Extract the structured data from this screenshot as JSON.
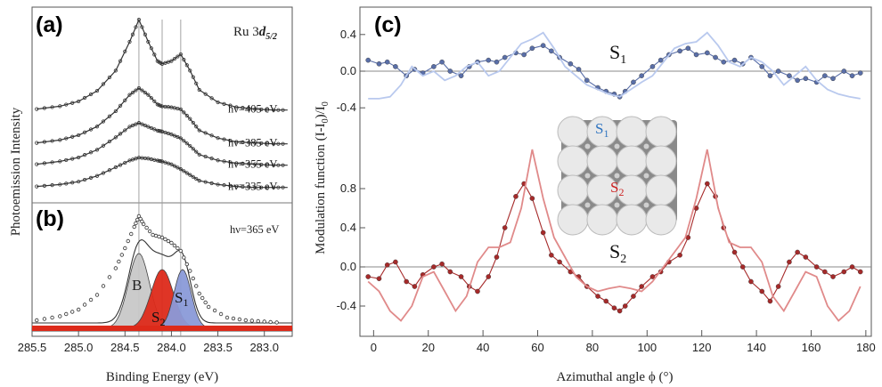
{
  "figure": {
    "panel_labels": [
      "(a)",
      "(b)",
      "(c)"
    ],
    "ab_ylabel": "Photoemission Intensity",
    "ab_xlabel": "Binding Energy (eV)",
    "c_ylabel": "Modulation function (I-I",
    "c_ylabel_sub": "0",
    "c_ylabel_tail": ")/I",
    "c_ylabel_sub2": "0",
    "c_xlabel": "Azimuthal angle ϕ (°)",
    "a_title_main": "Ru 3",
    "a_title_d": "d",
    "a_title_sub": "5/2",
    "b_title": "hν=365 eV",
    "b_peaks": {
      "B": "B",
      "S2": "S",
      "S2_sub": "2",
      "S1": "S",
      "S1_sub": "1"
    },
    "c_series_labels": {
      "S1": "S",
      "S1_sub": "1",
      "S2": "S",
      "S2_sub": "2"
    },
    "c_model_labels": {
      "S1": "S",
      "S1_sub": "1",
      "S2": "S",
      "S2_sub": "2"
    }
  },
  "colors": {
    "s1_points": "#5a6fa8",
    "s1_line": "#b9c9ee",
    "s2_points": "#a62a2a",
    "s2_line": "#e08a8a",
    "B_fill": "#c8c8c8",
    "S2_fill": "#dd2a1a",
    "S1_fill": "#8a9ad8",
    "model_S1_text": "#2f74c0",
    "model_S2_text": "#cc2222"
  },
  "chart_data": [
    {
      "type": "line",
      "panel": "(a)",
      "title": "Ru 3d5/2",
      "xlabel": "Binding Energy (eV)",
      "ylabel": "Photoemission Intensity",
      "xlim": [
        285.5,
        282.7
      ],
      "x_reversed": true,
      "xticks": [
        285.5,
        285.0,
        284.5,
        284.0,
        283.5,
        283.0
      ],
      "reference_lines_eV": [
        284.35,
        284.1,
        283.9
      ],
      "series": [
        {
          "name": "hν=405 eV",
          "x": [
            285.45,
            285.2,
            285.0,
            284.8,
            284.6,
            284.45,
            284.35,
            284.25,
            284.15,
            284.1,
            284.0,
            283.9,
            283.8,
            283.7,
            283.5,
            283.3,
            283.1,
            282.9,
            282.75
          ],
          "y": [
            0.05,
            0.08,
            0.13,
            0.24,
            0.45,
            0.75,
            0.98,
            0.75,
            0.55,
            0.52,
            0.55,
            0.62,
            0.45,
            0.25,
            0.12,
            0.07,
            0.05,
            0.04,
            0.04
          ]
        },
        {
          "name": "hν=385 eV",
          "x": [
            285.45,
            285.2,
            285.0,
            284.8,
            284.6,
            284.45,
            284.35,
            284.25,
            284.15,
            284.1,
            284.0,
            283.9,
            283.8,
            283.7,
            283.5,
            283.3,
            283.1,
            282.9,
            282.75
          ],
          "y": [
            0.05,
            0.08,
            0.13,
            0.22,
            0.38,
            0.55,
            0.62,
            0.55,
            0.45,
            0.43,
            0.42,
            0.4,
            0.3,
            0.18,
            0.1,
            0.06,
            0.05,
            0.04,
            0.04
          ]
        },
        {
          "name": "hν=355 eV",
          "x": [
            285.45,
            285.2,
            285.0,
            284.8,
            284.6,
            284.45,
            284.35,
            284.25,
            284.15,
            284.1,
            284.0,
            283.9,
            283.8,
            283.7,
            283.5,
            283.3,
            283.1,
            282.9,
            282.75
          ],
          "y": [
            0.05,
            0.08,
            0.12,
            0.2,
            0.33,
            0.44,
            0.48,
            0.44,
            0.4,
            0.39,
            0.36,
            0.32,
            0.24,
            0.15,
            0.09,
            0.06,
            0.05,
            0.04,
            0.04
          ]
        },
        {
          "name": "hν=335 eV",
          "x": [
            285.45,
            285.2,
            285.0,
            284.8,
            284.6,
            284.45,
            284.35,
            284.25,
            284.15,
            284.1,
            284.0,
            283.9,
            283.8,
            283.7,
            283.5,
            283.3,
            283.1,
            282.9,
            282.75
          ],
          "y": [
            0.05,
            0.07,
            0.1,
            0.16,
            0.25,
            0.32,
            0.35,
            0.34,
            0.32,
            0.31,
            0.28,
            0.23,
            0.17,
            0.11,
            0.07,
            0.05,
            0.04,
            0.04,
            0.04
          ]
        }
      ]
    },
    {
      "type": "area",
      "panel": "(b)",
      "title": "hν=365 eV",
      "xlabel": "Binding Energy (eV)",
      "xlim": [
        285.5,
        282.7
      ],
      "x_reversed": true,
      "xticks": [
        285.5,
        285.0,
        284.5,
        284.0,
        283.5,
        283.0
      ],
      "components": [
        {
          "name": "B",
          "center_eV": 284.35,
          "amplitude": 0.56,
          "width_eV": 0.16
        },
        {
          "name": "S2",
          "center_eV": 284.1,
          "amplitude": 0.44,
          "width_eV": 0.17
        },
        {
          "name": "S1",
          "center_eV": 283.88,
          "amplitude": 0.44,
          "width_eV": 0.13
        }
      ],
      "background_level": 0.06,
      "data_points": {
        "x": [
          285.45,
          285.2,
          285.0,
          284.8,
          284.6,
          284.5,
          284.4,
          284.35,
          284.3,
          284.2,
          284.1,
          284.0,
          283.9,
          283.8,
          283.7,
          283.6,
          283.4,
          283.2,
          283.0,
          282.8
        ],
        "y": [
          0.08,
          0.11,
          0.16,
          0.27,
          0.47,
          0.62,
          0.78,
          0.86,
          0.8,
          0.72,
          0.7,
          0.66,
          0.6,
          0.45,
          0.28,
          0.18,
          0.1,
          0.08,
          0.07,
          0.06
        ]
      }
    },
    {
      "type": "scatter",
      "panel": "(c)",
      "xlabel": "Azimuthal angle ϕ (°)",
      "ylabel": "Modulation function (I-I0)/I0",
      "xlim": [
        -5,
        182
      ],
      "xticks": [
        0,
        20,
        40,
        60,
        80,
        100,
        120,
        140,
        160,
        180
      ],
      "upper_yticks": [
        0.4,
        0.0,
        -0.4
      ],
      "lower_yticks": [
        0.8,
        0.4,
        0.0,
        -0.4
      ],
      "series": [
        {
          "name": "S1",
          "type": "points",
          "x": [
            -2,
            2,
            5,
            8,
            12,
            15,
            18,
            22,
            25,
            28,
            32,
            35,
            38,
            42,
            45,
            48,
            52,
            55,
            58,
            62,
            65,
            68,
            72,
            75,
            78,
            82,
            85,
            88,
            90,
            92,
            95,
            98,
            102,
            105,
            108,
            112,
            115,
            118,
            122,
            125,
            128,
            132,
            135,
            138,
            142,
            145,
            148,
            152,
            155,
            158,
            162,
            165,
            168,
            172,
            175,
            178
          ],
          "y": [
            0.12,
            0.08,
            0.1,
            0.05,
            -0.05,
            0.02,
            -0.02,
            0.05,
            0.1,
            0.0,
            -0.05,
            0.05,
            0.1,
            0.12,
            0.1,
            0.15,
            0.2,
            0.18,
            0.25,
            0.28,
            0.22,
            0.15,
            0.08,
            0.02,
            -0.1,
            -0.18,
            -0.22,
            -0.25,
            -0.28,
            -0.22,
            -0.12,
            -0.05,
            0.05,
            0.12,
            0.18,
            0.22,
            0.25,
            0.18,
            0.2,
            0.15,
            0.1,
            0.12,
            0.08,
            0.15,
            0.05,
            -0.05,
            0.0,
            -0.05,
            -0.1,
            -0.08,
            -0.12,
            -0.05,
            -0.08,
            0.0,
            -0.05,
            -0.02
          ]
        },
        {
          "name": "S1 model",
          "type": "line",
          "x": [
            -2,
            2,
            6,
            10,
            14,
            18,
            22,
            26,
            30,
            34,
            38,
            42,
            46,
            50,
            54,
            58,
            62,
            66,
            70,
            74,
            78,
            82,
            86,
            90,
            94,
            98,
            102,
            106,
            110,
            114,
            118,
            122,
            126,
            130,
            134,
            138,
            142,
            146,
            150,
            154,
            158,
            162,
            166,
            170,
            174,
            178
          ],
          "y": [
            -0.3,
            -0.3,
            -0.28,
            -0.15,
            0.05,
            -0.05,
            0.0,
            -0.1,
            -0.05,
            0.05,
            0.1,
            -0.05,
            0.0,
            0.15,
            0.3,
            0.35,
            0.42,
            0.25,
            0.05,
            -0.05,
            -0.15,
            -0.2,
            -0.25,
            -0.28,
            -0.2,
            -0.12,
            -0.05,
            0.1,
            0.25,
            0.3,
            0.32,
            0.42,
            0.28,
            0.1,
            0.05,
            0.15,
            0.1,
            0.0,
            -0.15,
            -0.05,
            0.05,
            -0.1,
            -0.2,
            -0.25,
            -0.28,
            -0.3
          ]
        },
        {
          "name": "S2",
          "type": "points",
          "x": [
            -2,
            2,
            5,
            8,
            12,
            15,
            18,
            22,
            25,
            28,
            32,
            35,
            38,
            42,
            45,
            48,
            52,
            55,
            58,
            62,
            65,
            68,
            72,
            75,
            78,
            82,
            85,
            88,
            90,
            92,
            95,
            98,
            102,
            105,
            108,
            112,
            115,
            118,
            122,
            125,
            128,
            132,
            135,
            138,
            142,
            145,
            148,
            152,
            155,
            158,
            162,
            165,
            168,
            172,
            175,
            178
          ],
          "y": [
            -0.1,
            -0.12,
            0.02,
            0.05,
            -0.15,
            -0.2,
            -0.08,
            0.0,
            0.03,
            -0.05,
            -0.1,
            -0.2,
            -0.25,
            -0.1,
            0.1,
            0.4,
            0.72,
            0.85,
            0.7,
            0.35,
            0.12,
            0.05,
            -0.05,
            -0.1,
            -0.2,
            -0.3,
            -0.35,
            -0.42,
            -0.45,
            -0.4,
            -0.3,
            -0.2,
            -0.1,
            -0.05,
            0.05,
            0.12,
            0.3,
            0.6,
            0.85,
            0.72,
            0.4,
            0.15,
            0.0,
            -0.15,
            -0.25,
            -0.35,
            -0.2,
            0.05,
            0.15,
            0.1,
            0.0,
            -0.05,
            -0.1,
            -0.05,
            0.0,
            -0.05
          ]
        },
        {
          "name": "S2 model",
          "type": "line",
          "x": [
            -2,
            2,
            6,
            10,
            14,
            18,
            22,
            26,
            30,
            34,
            38,
            42,
            46,
            50,
            54,
            58,
            62,
            66,
            70,
            74,
            78,
            82,
            86,
            90,
            94,
            98,
            102,
            106,
            110,
            114,
            118,
            122,
            126,
            130,
            134,
            138,
            142,
            146,
            150,
            154,
            158,
            162,
            166,
            170,
            174,
            178
          ],
          "y": [
            -0.15,
            -0.25,
            -0.45,
            -0.55,
            -0.4,
            -0.1,
            -0.05,
            -0.25,
            -0.45,
            -0.3,
            0.05,
            0.2,
            0.2,
            0.25,
            0.6,
            1.2,
            0.7,
            0.3,
            0.1,
            -0.1,
            -0.2,
            -0.25,
            -0.22,
            -0.2,
            -0.22,
            -0.25,
            -0.15,
            0.0,
            0.15,
            0.3,
            0.7,
            1.2,
            0.6,
            0.25,
            0.2,
            0.2,
            0.05,
            -0.3,
            -0.45,
            -0.25,
            -0.05,
            -0.1,
            -0.4,
            -0.55,
            -0.45,
            -0.2
          ]
        }
      ]
    }
  ]
}
